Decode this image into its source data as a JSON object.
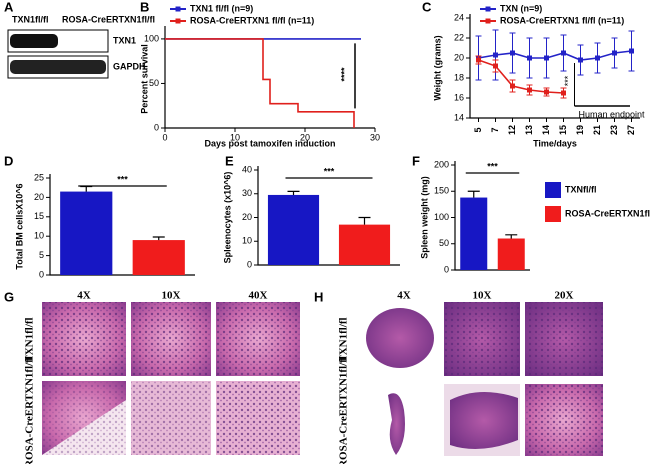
{
  "panels": [
    "A",
    "B",
    "C",
    "D",
    "E",
    "F",
    "G",
    "H"
  ],
  "blot": {
    "columns": [
      "TXN1fl/fl",
      "ROSA-CreERTXN1fl/fl"
    ],
    "rows": [
      "TXN1",
      "GAPDH"
    ]
  },
  "chart_data": [
    {
      "type": "line",
      "step": true,
      "ylabel": "Percent survival",
      "xlabel": "Days post tamoxifen induction",
      "xlim": [
        0,
        30
      ],
      "xticks": [
        0,
        10,
        20,
        30
      ],
      "ylim": [
        0,
        110
      ],
      "yticks": [
        0,
        50,
        100
      ],
      "annotation": "****",
      "series": [
        {
          "name": "TXN1 fl/fl (n=9)",
          "color": "#2323c8",
          "x": [
            0,
            28
          ],
          "values": [
            100,
            100
          ]
        },
        {
          "name": "ROSA-CreERTXN1 fl/fl (n=11)",
          "color": "#e0201c",
          "x": [
            0,
            14,
            15,
            19,
            27
          ],
          "values": [
            100,
            54.5,
            27.3,
            18.2,
            0
          ]
        }
      ]
    },
    {
      "type": "line",
      "step": false,
      "ylabel": "Weight (grams)",
      "xlabel": "Time/days",
      "categories": [
        "5",
        "7",
        "12",
        "13",
        "14",
        "15",
        "19",
        "21",
        "23",
        "27"
      ],
      "ylim": [
        14,
        24
      ],
      "yticks": [
        14,
        16,
        18,
        20,
        22,
        24
      ],
      "annotation": "***",
      "endpoint": "Human endpoint",
      "series": [
        {
          "name": "TXN (n=9)",
          "color": "#2323c8",
          "values": [
            20,
            20.3,
            20.5,
            20,
            20,
            20.5,
            19.8,
            20,
            20.5,
            20.7
          ],
          "errors": [
            2.2,
            2.5,
            2,
            2,
            2,
            1.8,
            1.5,
            1.5,
            1.5,
            2
          ]
        },
        {
          "name": "ROSA-CreERTXN1 fl/fl (n=11)",
          "color": "#e0201c",
          "values": [
            19.8,
            19.2,
            17.2,
            16.8,
            16.6,
            16.5,
            null,
            null,
            null,
            null
          ],
          "errors": [
            0.4,
            0.6,
            0.6,
            0.5,
            0.4,
            0.5,
            null,
            null,
            null,
            null
          ]
        }
      ]
    },
    {
      "type": "bar",
      "ylabel": "Total BM cellsX10^6",
      "categories": [
        null,
        null
      ],
      "values": [
        21.5,
        9
      ],
      "errors": [
        1.3,
        0.8
      ],
      "ylim": [
        0,
        25
      ],
      "yticks": [
        0,
        5,
        10,
        15,
        20,
        25
      ],
      "annotation": "***"
    },
    {
      "type": "bar",
      "ylabel": "Spleenocytes (x10^6)",
      "categories": [
        null,
        null
      ],
      "values": [
        29.5,
        17
      ],
      "errors": [
        1.5,
        3
      ],
      "ylim": [
        0,
        40
      ],
      "yticks": [
        0,
        10,
        20,
        30,
        40
      ],
      "annotation": "***"
    },
    {
      "type": "bar",
      "ylabel": "Spleen weight (mg)",
      "categories": [
        null,
        null
      ],
      "values": [
        138,
        60
      ],
      "errors": [
        12,
        7
      ],
      "ylim": [
        0,
        200
      ],
      "yticks": [
        0,
        50,
        100,
        150,
        200
      ],
      "annotation": "***"
    }
  ],
  "bar_legend": [
    {
      "name": "TXNfl/fl",
      "color": "#1717c4"
    },
    {
      "name": "ROSA-CreERTXN1fl/fl",
      "color": "#f01c1c"
    }
  ],
  "histology_g": {
    "columns": [
      "4X",
      "10X",
      "40X"
    ],
    "rows": [
      "TXN1fl/fl",
      "ROSA-CreERTXN1fl/fl"
    ]
  },
  "histology_h": {
    "columns": [
      "4X",
      "10X",
      "20X"
    ],
    "rows": [
      "TXN1fl/fl",
      "ROSA-CreERTXN1fl/fl"
    ]
  }
}
